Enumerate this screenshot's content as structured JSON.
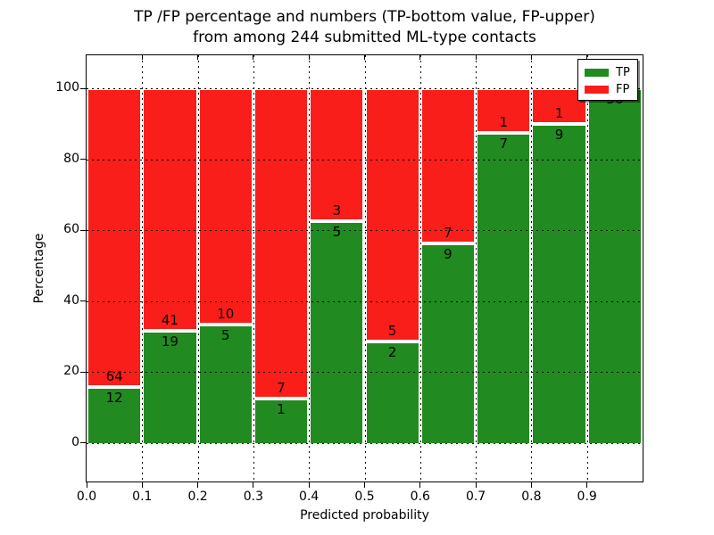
{
  "title": {
    "line1": "TP /FP percentage and numbers (TP-bottom value, FP-upper)",
    "line2": "from among 244 submitted ML-type contacts"
  },
  "axes": {
    "xlabel": "Predicted probability",
    "ylabel": "Percentage"
  },
  "legend": {
    "items": [
      {
        "label": "TP",
        "color": "#218b21"
      },
      {
        "label": "FP",
        "color": "#f91e1a"
      }
    ],
    "position": "upper right"
  },
  "chart_data": {
    "type": "bar",
    "stacked": true,
    "normalized": "percent_within_bin",
    "title": "TP /FP percentage and numbers (TP-bottom value, FP-upper) from among 244 submitted ML-type contacts",
    "xlabel": "Predicted probability",
    "ylabel": "Percentage",
    "total_contacts": 244,
    "xlim": [
      0.0,
      1.0
    ],
    "ylim": [
      -10.9,
      109.4
    ],
    "x_tick_values": [
      0.0,
      0.1,
      0.2,
      0.3,
      0.4,
      0.5,
      0.6,
      0.7,
      0.8,
      0.9
    ],
    "x_tick_labels": [
      "0.0",
      "0.1",
      "0.2",
      "0.3",
      "0.4",
      "0.5",
      "0.6",
      "0.7",
      "0.8",
      "0.9"
    ],
    "y_tick_values": [
      0,
      20,
      40,
      60,
      80,
      100
    ],
    "y_tick_labels": [
      "0",
      "20",
      "40",
      "60",
      "80",
      "100"
    ],
    "grid": "dotted",
    "bins": [
      [
        0.0,
        0.1
      ],
      [
        0.1,
        0.2
      ],
      [
        0.2,
        0.3
      ],
      [
        0.3,
        0.4
      ],
      [
        0.4,
        0.5
      ],
      [
        0.5,
        0.6
      ],
      [
        0.6,
        0.7
      ],
      [
        0.7,
        0.8
      ],
      [
        0.8,
        0.9
      ],
      [
        0.9,
        1.0
      ]
    ],
    "series": [
      {
        "name": "TP",
        "color": "#218b21",
        "counts": [
          12,
          19,
          5,
          1,
          5,
          2,
          9,
          7,
          9,
          36
        ]
      },
      {
        "name": "FP",
        "color": "#f91e1a",
        "counts": [
          64,
          41,
          10,
          7,
          3,
          5,
          7,
          1,
          1,
          0
        ]
      }
    ],
    "tp_percent_per_bin": [
      15.79,
      31.67,
      33.33,
      12.5,
      62.5,
      28.57,
      56.25,
      87.5,
      90.0,
      100.0
    ]
  }
}
